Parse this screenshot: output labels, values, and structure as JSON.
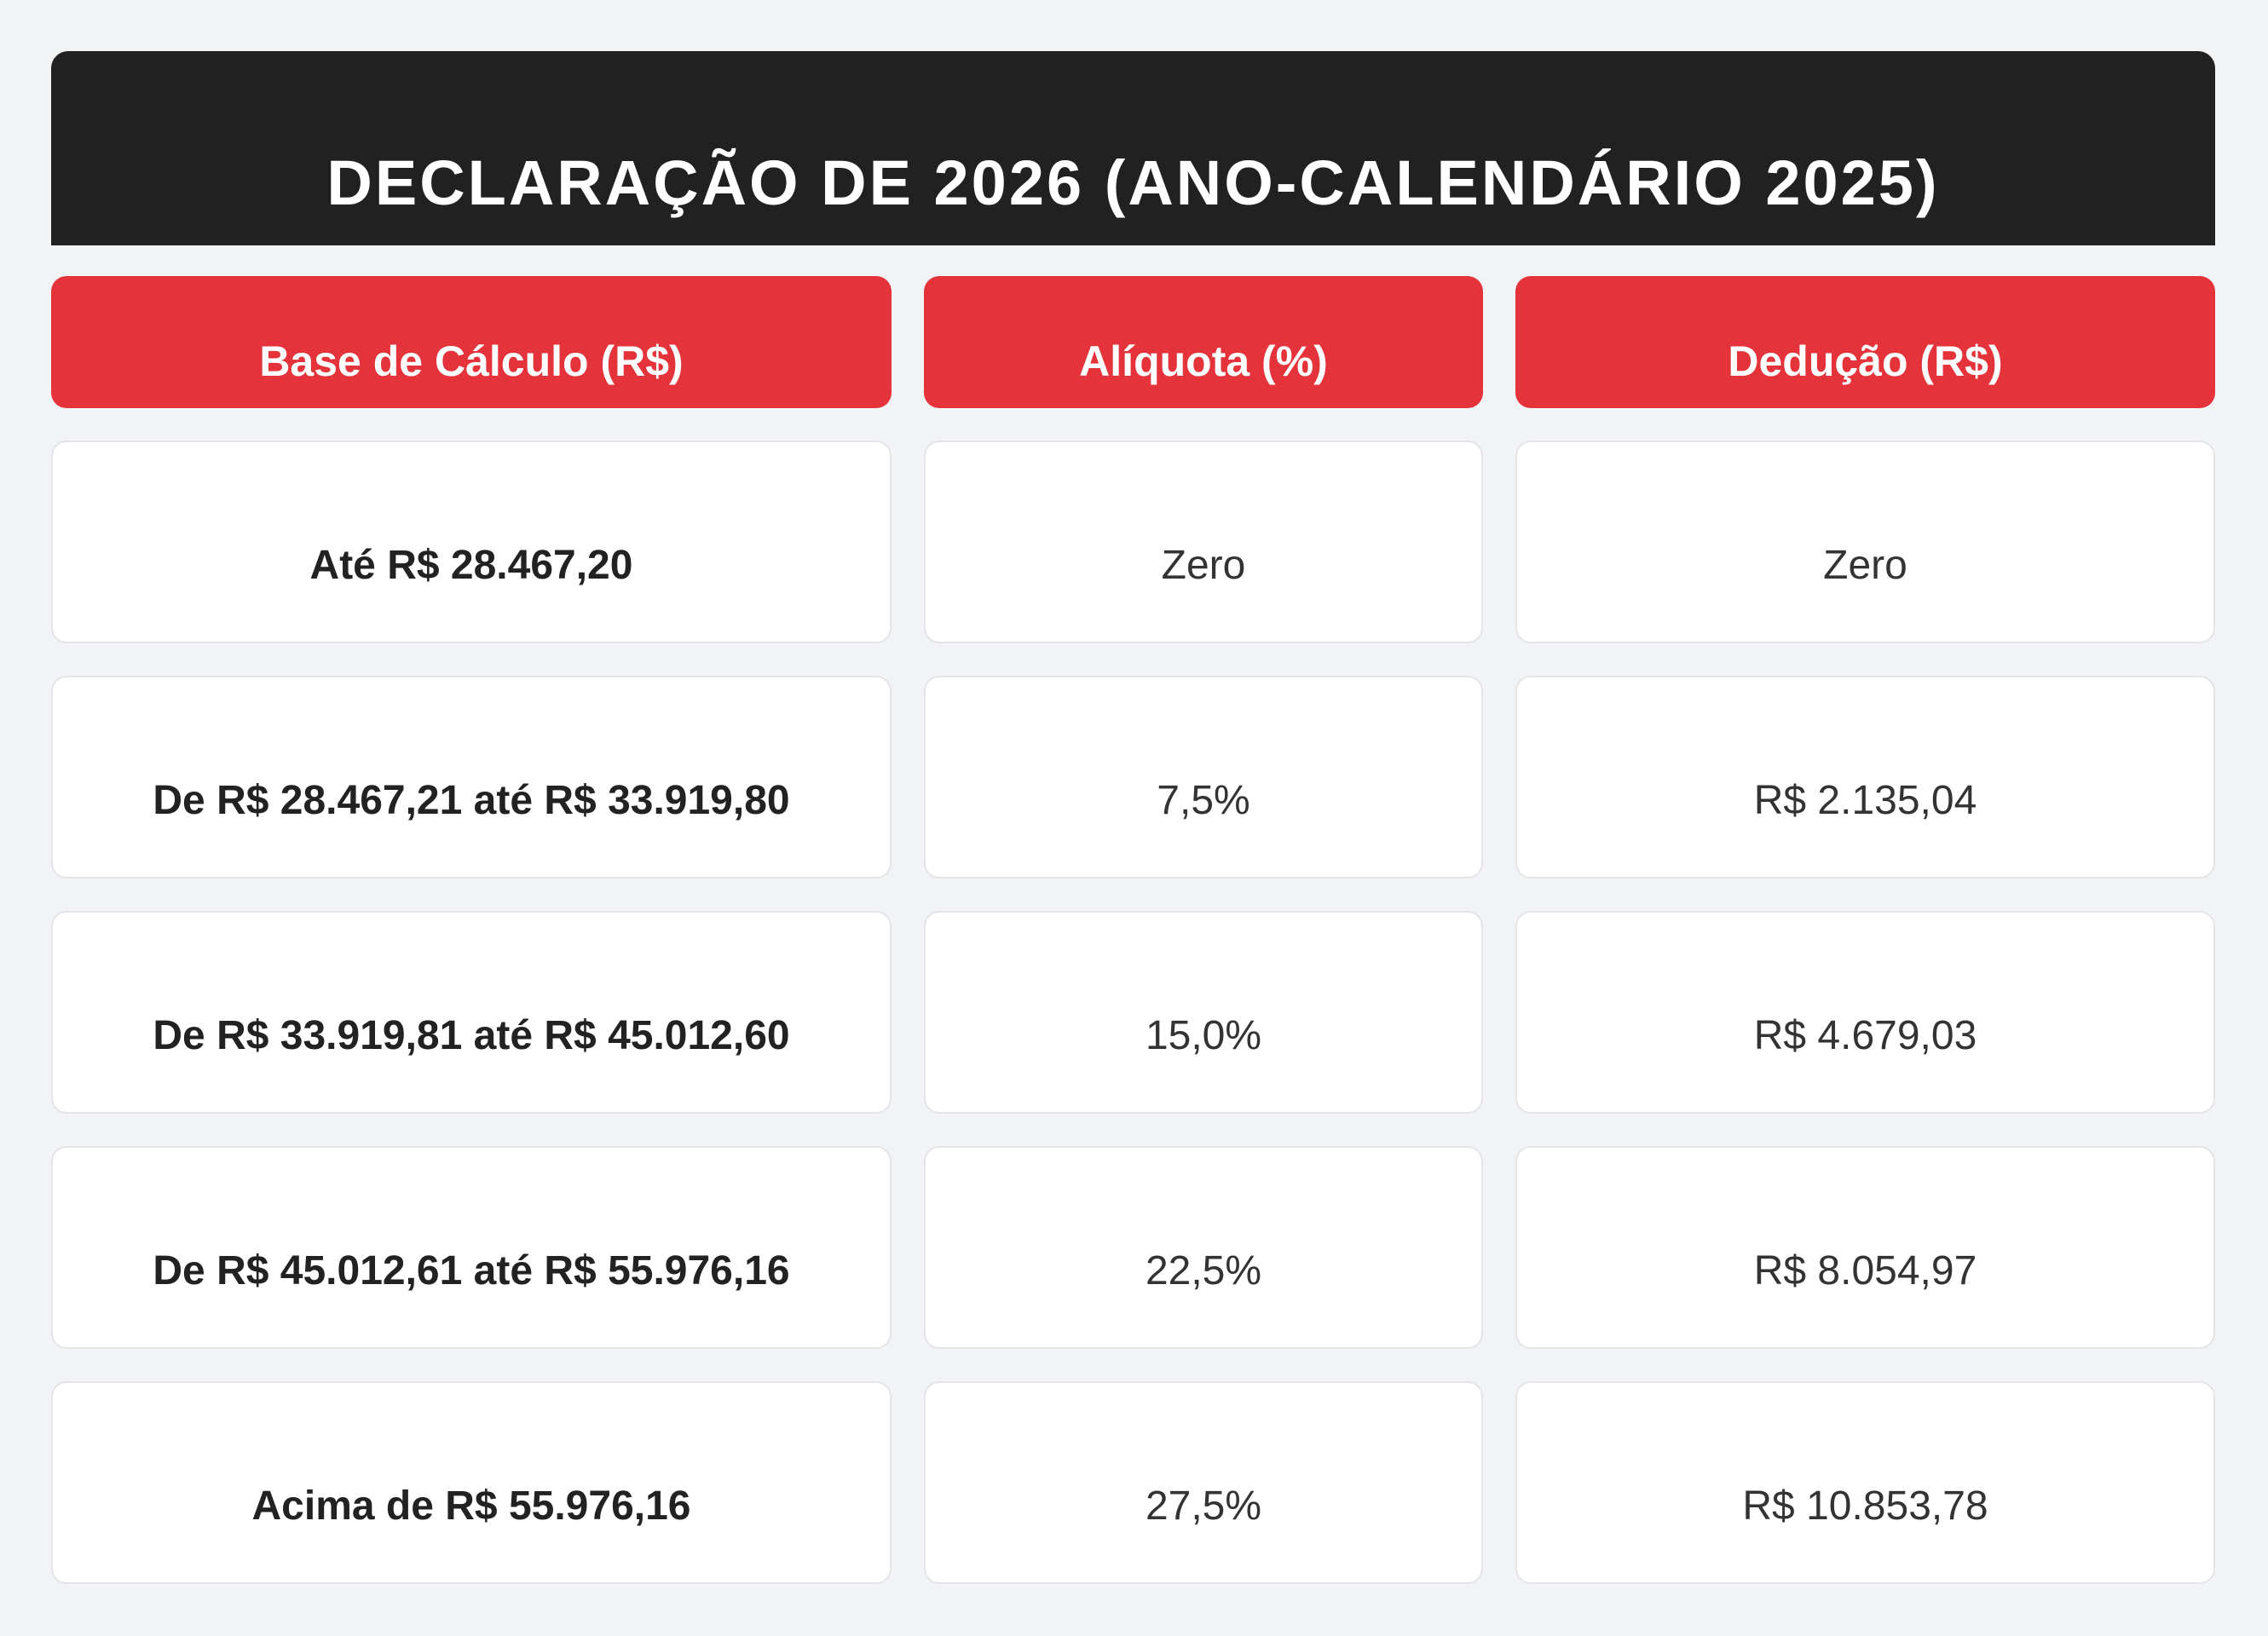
{
  "title": "DECLARAÇÃO DE 2026 (ANO-CALENDÁRIO 2025)",
  "colors": {
    "title_bar": "#212121",
    "header": "#e5333b",
    "page_background": "#f2f3f5",
    "cell_background": "#ffffff"
  },
  "table": {
    "headers": [
      "Base de Cálculo (R$)",
      "Alíquota (%)",
      "Dedução (R$)"
    ],
    "rows": [
      {
        "base": "Até R$ 28.467,20",
        "aliquota": "Zero",
        "deducao": "Zero"
      },
      {
        "base": "De R$ 28.467,21 até R$ 33.919,80",
        "aliquota": "7,5%",
        "deducao": "R$ 2.135,04"
      },
      {
        "base": "De R$ 33.919,81 até R$ 45.012,60",
        "aliquota": "15,0%",
        "deducao": "R$ 4.679,03"
      },
      {
        "base": "De R$ 45.012,61 até R$ 55.976,16",
        "aliquota": "22,5%",
        "deducao": "R$ 8.054,97"
      },
      {
        "base": "Acima de R$ 55.976,16",
        "aliquota": "27,5%",
        "deducao": "R$ 10.853,78"
      }
    ]
  }
}
